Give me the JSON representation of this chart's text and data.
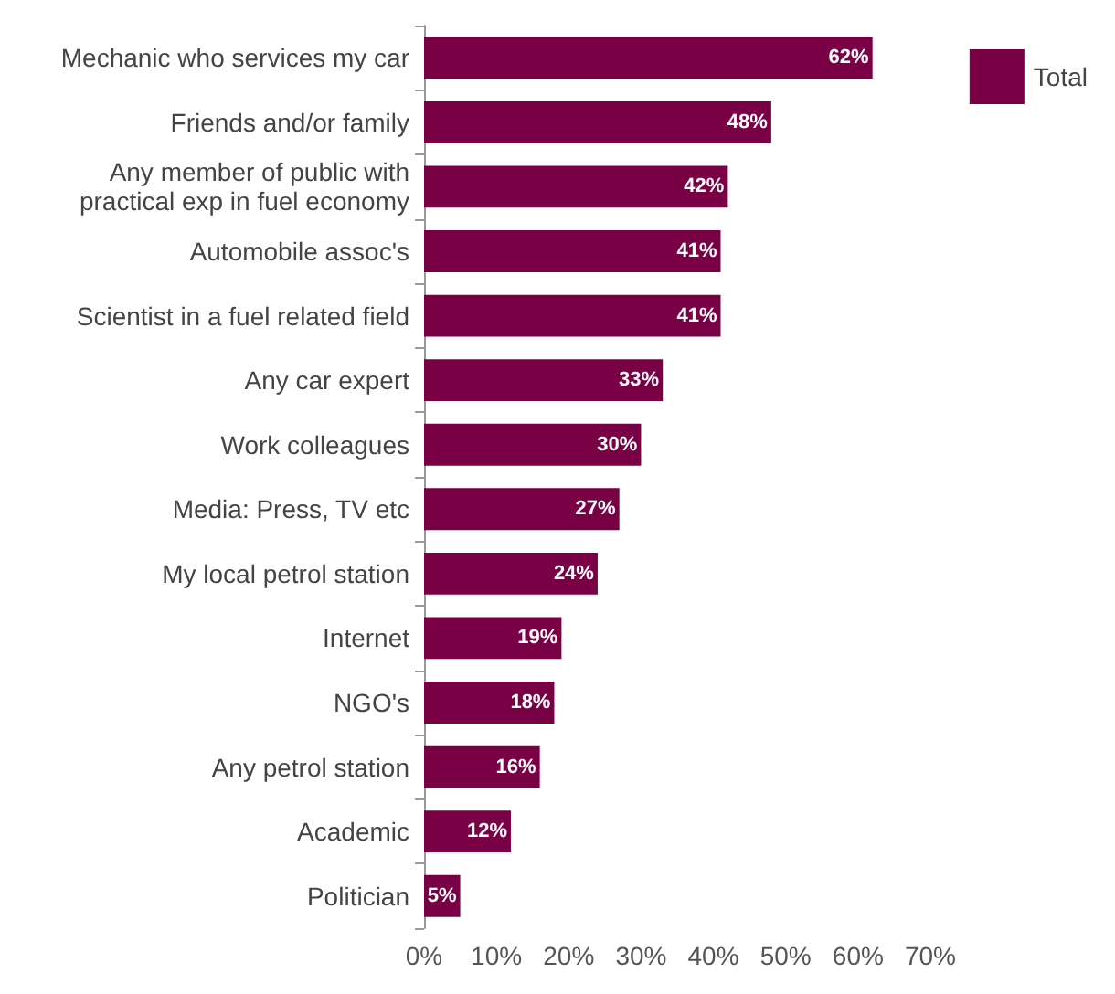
{
  "chart_data": {
    "type": "bar",
    "orientation": "horizontal",
    "categories": [
      "Mechanic who services my car",
      "Friends and/or family",
      "Any member of public with\npractical exp in fuel economy",
      "Automobile assoc's",
      "Scientist in a fuel related field",
      "Any car expert",
      "Work colleagues",
      "Media: Press, TV etc",
      "My local petrol station",
      "Internet",
      "NGO's",
      "Any petrol station",
      "Academic",
      "Politician"
    ],
    "series": [
      {
        "name": "Total",
        "color": "#7a0046",
        "values": [
          62,
          48,
          42,
          41,
          41,
          33,
          30,
          27,
          24,
          19,
          18,
          16,
          12,
          5
        ],
        "value_labels": [
          "62%",
          "48%",
          "42%",
          "41%",
          "41%",
          "33%",
          "30%",
          "27%",
          "24%",
          "19%",
          "18%",
          "16%",
          "12%",
          "5%"
        ]
      }
    ],
    "xlim": [
      0,
      70
    ],
    "xticks": [
      {
        "value": 0,
        "label": "0%"
      },
      {
        "value": 10,
        "label": "10%"
      },
      {
        "value": 20,
        "label": "20%"
      },
      {
        "value": 30,
        "label": "30%"
      },
      {
        "value": 40,
        "label": "40%"
      },
      {
        "value": 50,
        "label": "50%"
      },
      {
        "value": 60,
        "label": "60%"
      },
      {
        "value": 70,
        "label": "70%"
      }
    ],
    "grid": false,
    "legend": "top right"
  }
}
